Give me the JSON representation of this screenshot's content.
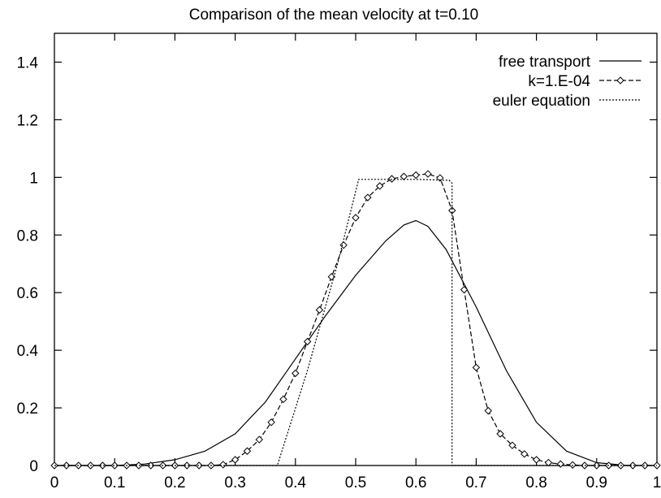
{
  "chart_data": {
    "type": "line",
    "title": "Comparison of the mean velocity at t=0.10",
    "xlabel": "",
    "ylabel": "",
    "xlim": [
      0,
      1
    ],
    "ylim": [
      0,
      1.5
    ],
    "xticks": [
      0,
      0.1,
      0.2,
      0.3,
      0.4,
      0.5,
      0.6,
      0.7,
      0.8,
      0.9,
      1
    ],
    "xtick_labels": [
      "0",
      "0.1",
      "0.2",
      "0.3",
      "0.4",
      "0.5",
      "0.6",
      "0.7",
      "0.8",
      "0.9",
      "1"
    ],
    "yticks": [
      0,
      0.2,
      0.4,
      0.6,
      0.8,
      1,
      1.2,
      1.4
    ],
    "ytick_labels": [
      "0",
      "0.2",
      "0.4",
      "0.6",
      "0.8",
      "1",
      "1.2",
      "1.4"
    ],
    "grid": false,
    "legend_position": "top-right",
    "series": [
      {
        "name": "free transport",
        "style": "solid",
        "marker": "none",
        "color": "#000000",
        "x": [
          0,
          0.1,
          0.15,
          0.2,
          0.25,
          0.3,
          0.35,
          0.4,
          0.45,
          0.5,
          0.55,
          0.58,
          0.6,
          0.62,
          0.65,
          0.7,
          0.75,
          0.8,
          0.85,
          0.9,
          0.95,
          1
        ],
        "y": [
          0,
          0.0,
          0.005,
          0.02,
          0.05,
          0.11,
          0.22,
          0.37,
          0.52,
          0.66,
          0.78,
          0.835,
          0.85,
          0.83,
          0.75,
          0.55,
          0.33,
          0.15,
          0.05,
          0.01,
          0.0,
          0
        ]
      },
      {
        "name": "k=1.E-04",
        "style": "dashed",
        "marker": "diamond",
        "color": "#000000",
        "x": [
          0,
          0.02,
          0.04,
          0.06,
          0.08,
          0.1,
          0.12,
          0.14,
          0.16,
          0.18,
          0.2,
          0.22,
          0.24,
          0.26,
          0.28,
          0.3,
          0.32,
          0.34,
          0.36,
          0.38,
          0.4,
          0.42,
          0.44,
          0.46,
          0.48,
          0.5,
          0.52,
          0.54,
          0.56,
          0.58,
          0.6,
          0.62,
          0.64,
          0.66,
          0.68,
          0.7,
          0.72,
          0.74,
          0.76,
          0.78,
          0.8,
          0.82,
          0.84,
          0.86,
          0.88,
          0.9,
          0.92,
          0.94,
          0.96,
          0.98,
          1
        ],
        "y": [
          0,
          0,
          0,
          0,
          0,
          0,
          0,
          0,
          0,
          0,
          0,
          0,
          0,
          0,
          0.003,
          0.02,
          0.05,
          0.09,
          0.15,
          0.23,
          0.32,
          0.43,
          0.54,
          0.655,
          0.765,
          0.86,
          0.93,
          0.97,
          0.995,
          1.003,
          1.008,
          1.012,
          0.998,
          0.885,
          0.61,
          0.34,
          0.19,
          0.11,
          0.07,
          0.04,
          0.02,
          0.01,
          0.005,
          0.002,
          0,
          0,
          0,
          0,
          0,
          0,
          0
        ]
      },
      {
        "name": "euler equation",
        "style": "dotted",
        "marker": "none",
        "color": "#000000",
        "x": [
          0,
          0.37,
          0.42,
          0.47,
          0.505,
          0.52,
          0.6,
          0.655,
          0.66,
          0.66,
          1
        ],
        "y": [
          0,
          0,
          0.33,
          0.7,
          0.993,
          0.993,
          0.993,
          0.99,
          0.98,
          0,
          0
        ]
      }
    ]
  }
}
